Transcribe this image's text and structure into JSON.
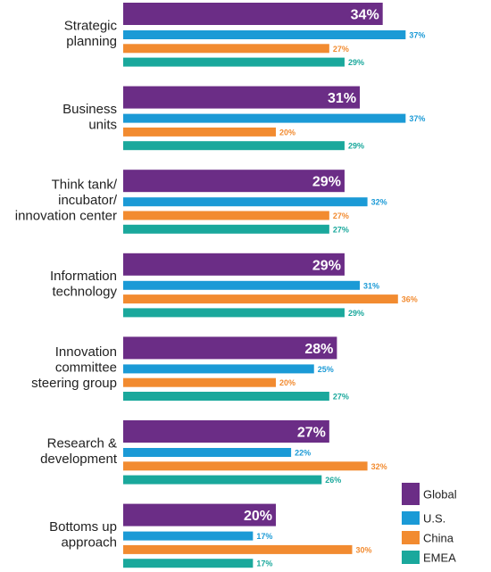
{
  "chart_data": {
    "type": "bar",
    "orientation": "horizontal",
    "categories": [
      [
        "Strategic",
        "planning"
      ],
      [
        "Business",
        "units"
      ],
      [
        "Think tank/",
        "incubator/",
        "innovation center"
      ],
      [
        "Information",
        "technology"
      ],
      [
        "Innovation",
        "committee",
        "steering group"
      ],
      [
        "Research &",
        "development"
      ],
      [
        "Bottoms up",
        "approach"
      ]
    ],
    "series": [
      {
        "name": "Global",
        "color": "#6b2d86",
        "values": [
          34,
          31,
          29,
          29,
          28,
          27,
          20
        ]
      },
      {
        "name": "U.S.",
        "color": "#1b9ad6",
        "values": [
          37,
          37,
          32,
          31,
          25,
          22,
          17
        ]
      },
      {
        "name": "China",
        "color": "#f28b30",
        "values": [
          27,
          20,
          27,
          36,
          20,
          32,
          30
        ]
      },
      {
        "name": "EMEA",
        "color": "#1aa89c",
        "values": [
          29,
          29,
          27,
          29,
          27,
          26,
          17
        ]
      }
    ],
    "value_suffix": "%",
    "legend_position": "bottom-right",
    "grid": false,
    "title": "",
    "xlabel": "",
    "ylabel": ""
  }
}
